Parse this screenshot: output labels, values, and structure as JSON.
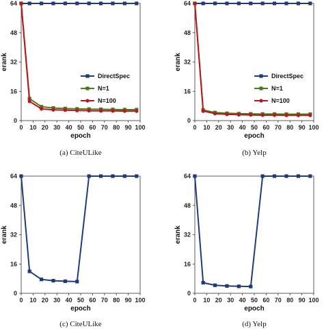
{
  "colors": {
    "DirectSpec": "#1f3a78",
    "N=1": "#4a7a1e",
    "N=100": "#c0141c"
  },
  "chart_data": [
    {
      "type": "line",
      "caption": "(a)  CiteULike",
      "xlabel": "epoch",
      "ylabel": "erank",
      "xlim": [
        0,
        100
      ],
      "ylim": [
        0,
        64
      ],
      "xticks": [
        "0",
        "10",
        "20",
        "30",
        "40",
        "50",
        "60",
        "70",
        "80",
        "90",
        "100"
      ],
      "yticks": [
        "0",
        "16",
        "32",
        "48",
        "64"
      ],
      "legend": "right",
      "series": [
        {
          "name": "DirectSpec",
          "x": [
            0,
            7,
            17,
            27,
            37,
            47,
            57,
            67,
            77,
            87,
            97
          ],
          "y": [
            64,
            64,
            64,
            64,
            64,
            64,
            64,
            64,
            64,
            64,
            64
          ]
        },
        {
          "name": "N=1",
          "x": [
            0,
            7,
            17,
            27,
            37,
            47,
            57,
            67,
            77,
            87,
            97
          ],
          "y": [
            64,
            12,
            7.6,
            6.9,
            6.6,
            6.4,
            6.3,
            6.2,
            6.1,
            6.0,
            6.0
          ]
        },
        {
          "name": "N=100",
          "x": [
            0,
            7,
            17,
            27,
            37,
            47,
            57,
            67,
            77,
            87,
            97
          ],
          "y": [
            64,
            10.5,
            6.4,
            5.9,
            5.7,
            5.5,
            5.4,
            5.3,
            5.3,
            5.2,
            5.2
          ]
        }
      ]
    },
    {
      "type": "line",
      "caption": "(b)  Yelp",
      "xlabel": "epoch",
      "ylabel": "erank",
      "xlim": [
        0,
        100
      ],
      "ylim": [
        0,
        64
      ],
      "xticks": [
        "0",
        "10",
        "20",
        "30",
        "40",
        "50",
        "60",
        "70",
        "80",
        "90",
        "100"
      ],
      "yticks": [
        "0",
        "16",
        "32",
        "48",
        "64"
      ],
      "legend": "right",
      "series": [
        {
          "name": "DirectSpec",
          "x": [
            0,
            7,
            17,
            27,
            37,
            47,
            57,
            67,
            77,
            87,
            97
          ],
          "y": [
            64,
            64,
            64,
            64,
            64,
            64,
            64,
            64,
            64,
            64,
            64
          ]
        },
        {
          "name": "N=1",
          "x": [
            0,
            7,
            17,
            27,
            37,
            47,
            57,
            67,
            77,
            87,
            97
          ],
          "y": [
            64,
            5.8,
            4.4,
            4.0,
            3.8,
            3.7,
            3.6,
            3.6,
            3.5,
            3.5,
            3.5
          ]
        },
        {
          "name": "N=100",
          "x": [
            0,
            7,
            17,
            27,
            37,
            47,
            57,
            67,
            77,
            87,
            97
          ],
          "y": [
            64,
            5.2,
            3.8,
            3.4,
            3.2,
            3.1,
            3.0,
            3.0,
            2.9,
            2.9,
            2.9
          ]
        }
      ]
    },
    {
      "type": "line",
      "caption": "(c)  CiteULike",
      "xlabel": "epoch",
      "ylabel": "erank",
      "xlim": [
        0,
        100
      ],
      "ylim": [
        0,
        64
      ],
      "xticks": [
        "0",
        "10",
        "20",
        "30",
        "40",
        "50",
        "60",
        "70",
        "80",
        "90",
        "100"
      ],
      "yticks": [
        "0",
        "16",
        "32",
        "48",
        "64"
      ],
      "series": [
        {
          "name": "DirectSpec",
          "x": [
            0,
            7,
            17,
            27,
            37,
            47,
            57,
            67,
            77,
            87,
            97
          ],
          "y": [
            64,
            12,
            7.6,
            6.9,
            6.6,
            6.4,
            64,
            64,
            64,
            64,
            64
          ]
        }
      ]
    },
    {
      "type": "line",
      "caption": "(d)  Yelp",
      "xlabel": "epoch",
      "ylabel": "erank",
      "xlim": [
        0,
        100
      ],
      "ylim": [
        0,
        64
      ],
      "xticks": [
        "0",
        "10",
        "20",
        "30",
        "40",
        "50",
        "60",
        "70",
        "80",
        "90",
        "100"
      ],
      "yticks": [
        "0",
        "16",
        "32",
        "48",
        "64"
      ],
      "series": [
        {
          "name": "DirectSpec",
          "x": [
            0,
            7,
            17,
            27,
            37,
            47,
            57,
            67,
            77,
            87,
            97
          ],
          "y": [
            64,
            5.8,
            4.4,
            4.0,
            3.8,
            3.7,
            64,
            64,
            64,
            64,
            64
          ]
        }
      ]
    }
  ]
}
